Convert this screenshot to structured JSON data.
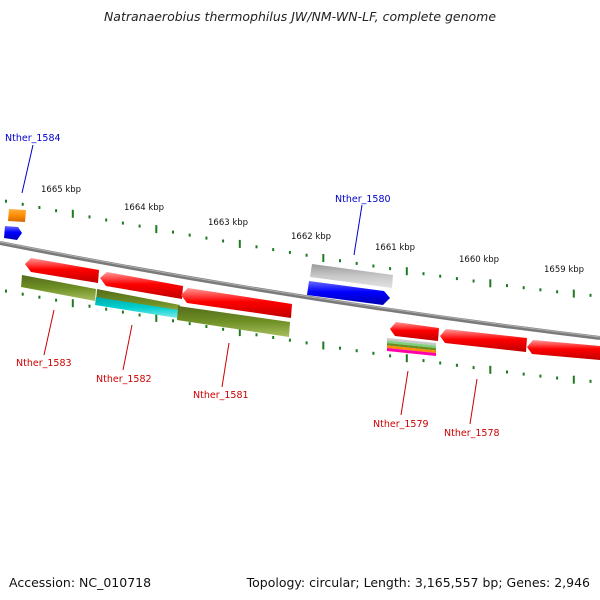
{
  "title": "Natranaerobius thermophilus JW/NM-WN-LF, complete genome",
  "footer": {
    "accession": "Accession: NC_010718",
    "stats": "Topology: circular; Length: 3,165,557 bp; Genes: 2,946"
  },
  "scale_labels": [
    "1665 kbp",
    "1664 kbp",
    "1663 kbp",
    "1662 kbp",
    "1661 kbp",
    "1660 kbp",
    "1659 kbp"
  ],
  "gene_labels": {
    "nther_1584": "Nther_1584",
    "nther_1580": "Nther_1580",
    "nther_1583": "Nther_1583",
    "nther_1582": "Nther_1582",
    "nther_1581": "Nther_1581",
    "nther_1579": "Nther_1579",
    "nther_1578": "Nther_1578"
  },
  "colors": {
    "backbone": "#7a7a7a",
    "tick": "#1f7a1f",
    "gene_red": "#ff0000",
    "gene_blue": "#0000ff",
    "gene_gray": "#b5b5b5",
    "gene_olive": "#6b8e23",
    "gene_cyan": "#00cccc",
    "gene_orange": "#ff8c00",
    "label_blue": "#0000cc",
    "label_red": "#cc0000"
  }
}
